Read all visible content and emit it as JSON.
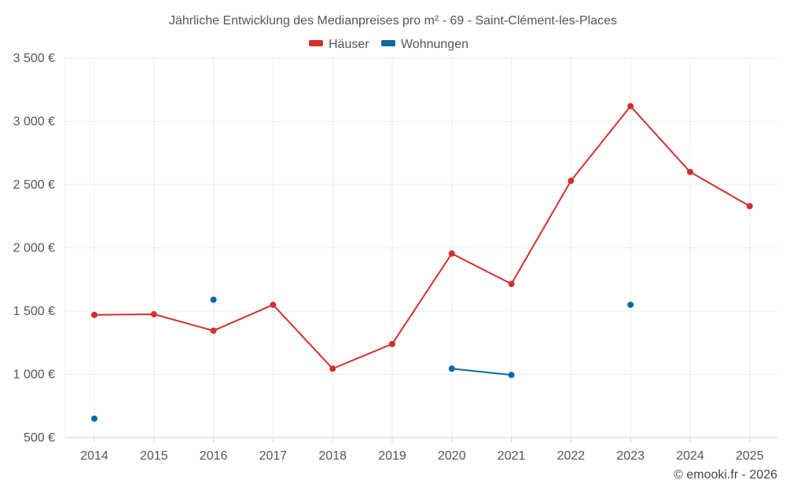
{
  "chart_data": {
    "type": "line",
    "title": "Jährliche Entwicklung des Medianpreises pro m² - 69 - Saint-Clément-les-Places",
    "categories": [
      "2014",
      "2015",
      "2016",
      "2017",
      "2018",
      "2019",
      "2020",
      "2021",
      "2022",
      "2023",
      "2024",
      "2025"
    ],
    "series": [
      {
        "name": "Häuser",
        "color": "#d32f2f",
        "values": [
          1470,
          1475,
          1345,
          1550,
          1045,
          1240,
          1955,
          1715,
          2530,
          3120,
          2600,
          2330
        ]
      },
      {
        "name": "Wohnungen",
        "color": "#0b6aa2",
        "values": [
          650,
          null,
          1590,
          null,
          null,
          null,
          1045,
          995,
          null,
          1550,
          null,
          null
        ]
      }
    ],
    "ylim": [
      500,
      3500
    ],
    "yticks": [
      500,
      1000,
      1500,
      2000,
      2500,
      3000,
      3500
    ],
    "ytick_labels": [
      "500 €",
      "1 000 €",
      "1 500 €",
      "2 000 €",
      "2 500 €",
      "3 000 €",
      "3 500 €"
    ],
    "xlabel": "",
    "ylabel": "",
    "legend_position": "top-center",
    "grid": true
  },
  "credit": "© emooki.fr - 2026"
}
